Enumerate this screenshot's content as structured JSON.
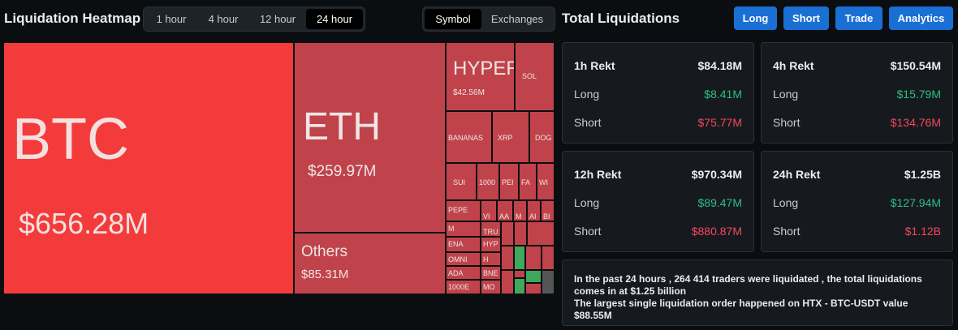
{
  "header": {
    "title": "Liquidation Heatmap",
    "time_tabs": [
      "1 hour",
      "4 hour",
      "12 hour",
      "24 hour"
    ],
    "selected_tab": 3,
    "view_tabs": [
      "Symbol",
      "Exchanges"
    ],
    "selected_view": 0
  },
  "panel": {
    "title": "Total Liquidations",
    "buttons": [
      "Long",
      "Short",
      "Trade",
      "Analytics"
    ]
  },
  "heatmap": {
    "tiles": [
      {
        "label": "BTC",
        "value": "$656.28M"
      },
      {
        "label": "ETH",
        "value": "$259.97M"
      },
      {
        "label": "Others",
        "value": "$85.31M"
      },
      {
        "label": "HYPER",
        "value": "$42.56M"
      }
    ],
    "small_tiles": [
      "SOL",
      "BANANAS",
      "XRP",
      "DOG",
      "SUI",
      "1000",
      "PEI",
      "FA",
      "WI",
      "PEPE",
      "VI",
      "AA",
      "M",
      "AI",
      "BI",
      "M",
      "TRU",
      "ENA",
      "HYP",
      "OMNI",
      "H",
      "ADA",
      "BNE",
      "1000E",
      "MO"
    ]
  },
  "cards": [
    {
      "title": "1h Rekt",
      "total": "$84.18M",
      "rows": [
        {
          "label": "Long",
          "value": "$8.41M"
        },
        {
          "label": "Short",
          "value": "$75.77M"
        }
      ]
    },
    {
      "title": "4h Rekt",
      "total": "$150.54M",
      "rows": [
        {
          "label": "Long",
          "value": "$15.79M"
        },
        {
          "label": "Short",
          "value": "$134.76M"
        }
      ]
    },
    {
      "title": "12h Rekt",
      "total": "$970.34M",
      "rows": [
        {
          "label": "Long",
          "value": "$89.47M"
        },
        {
          "label": "Short",
          "value": "$880.87M"
        }
      ]
    },
    {
      "title": "24h Rekt",
      "total": "$1.25B",
      "rows": [
        {
          "label": "Long",
          "value": "$127.94M"
        },
        {
          "label": "Short",
          "value": "$1.12B"
        }
      ]
    }
  ],
  "summary": {
    "lines": [
      "In the past 24 hours , 264 414 traders were liquidated , the total liquidations comes in at $1.25 billion",
      "The largest single liquidation order happened on HTX - BTC-USDT value $88.55M"
    ]
  }
}
